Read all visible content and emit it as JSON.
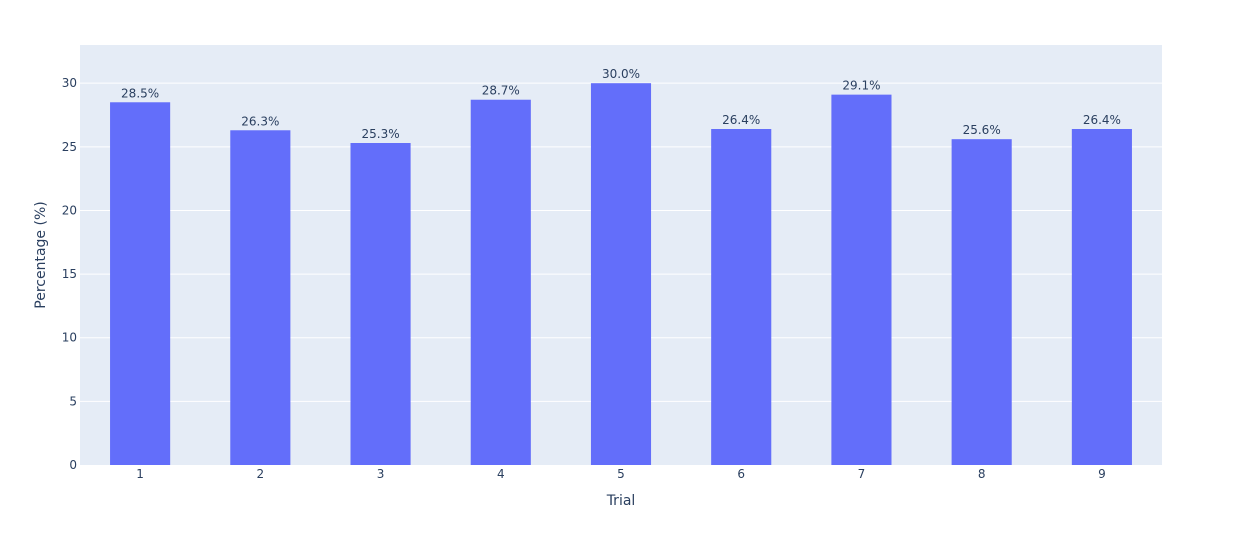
{
  "chart_data": {
    "type": "bar",
    "categories": [
      "1",
      "2",
      "3",
      "4",
      "5",
      "6",
      "7",
      "8",
      "9"
    ],
    "values": [
      28.5,
      26.3,
      25.3,
      28.7,
      30.0,
      26.4,
      29.1,
      25.6,
      26.4
    ],
    "data_labels": [
      "28.5%",
      "26.3%",
      "25.3%",
      "28.7%",
      "30.0%",
      "26.4%",
      "29.1%",
      "25.6%",
      "26.4%"
    ],
    "title": "",
    "xlabel": "Trial",
    "ylabel": "Percentage (%)",
    "ylim": [
      0,
      33
    ],
    "yticks": [
      0,
      5,
      10,
      15,
      20,
      25,
      30
    ],
    "grid": true,
    "legend": "none",
    "colors": {
      "bar": "#636efa",
      "plot_bg": "#e5ecf6",
      "grid": "#ffffff",
      "text": "#2a3f5f"
    }
  }
}
